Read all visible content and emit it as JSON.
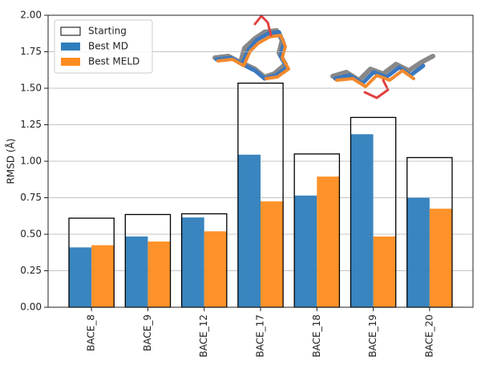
{
  "chart_data": {
    "type": "bar",
    "y_label": "RMSD (Å)",
    "categories": [
      "BACE_8",
      "BACE_9",
      "BACE_12",
      "BACE_17",
      "BACE_18",
      "BACE_19",
      "BACE_20"
    ],
    "series": [
      {
        "name": "Starting",
        "color": "#000000",
        "filled": false,
        "values": [
          0.61,
          0.635,
          0.64,
          1.535,
          1.05,
          1.3,
          1.025
        ]
      },
      {
        "name": "Best MD",
        "color": "#2f7ebc",
        "filled": true,
        "values": [
          0.41,
          0.485,
          0.615,
          1.045,
          0.765,
          1.185,
          0.75
        ]
      },
      {
        "name": "Best MELD",
        "color": "#ff8c1f",
        "filled": true,
        "values": [
          0.425,
          0.45,
          0.52,
          0.725,
          0.895,
          0.485,
          0.675
        ]
      }
    ],
    "ylim": [
      0,
      2
    ],
    "yticks": [
      {
        "value": 0,
        "label": "0.00"
      },
      {
        "value": 0.25,
        "label": "0.25"
      },
      {
        "value": 0.5,
        "label": "0.50"
      },
      {
        "value": 0.75,
        "label": "0.75"
      },
      {
        "value": 1,
        "label": "1.00"
      },
      {
        "value": 1.25,
        "label": "1.25"
      },
      {
        "value": 1.5,
        "label": "1.50"
      },
      {
        "value": 1.75,
        "label": "1.75"
      },
      {
        "value": 2,
        "label": "2.00"
      }
    ],
    "grid": true,
    "legend": "upper-left"
  }
}
